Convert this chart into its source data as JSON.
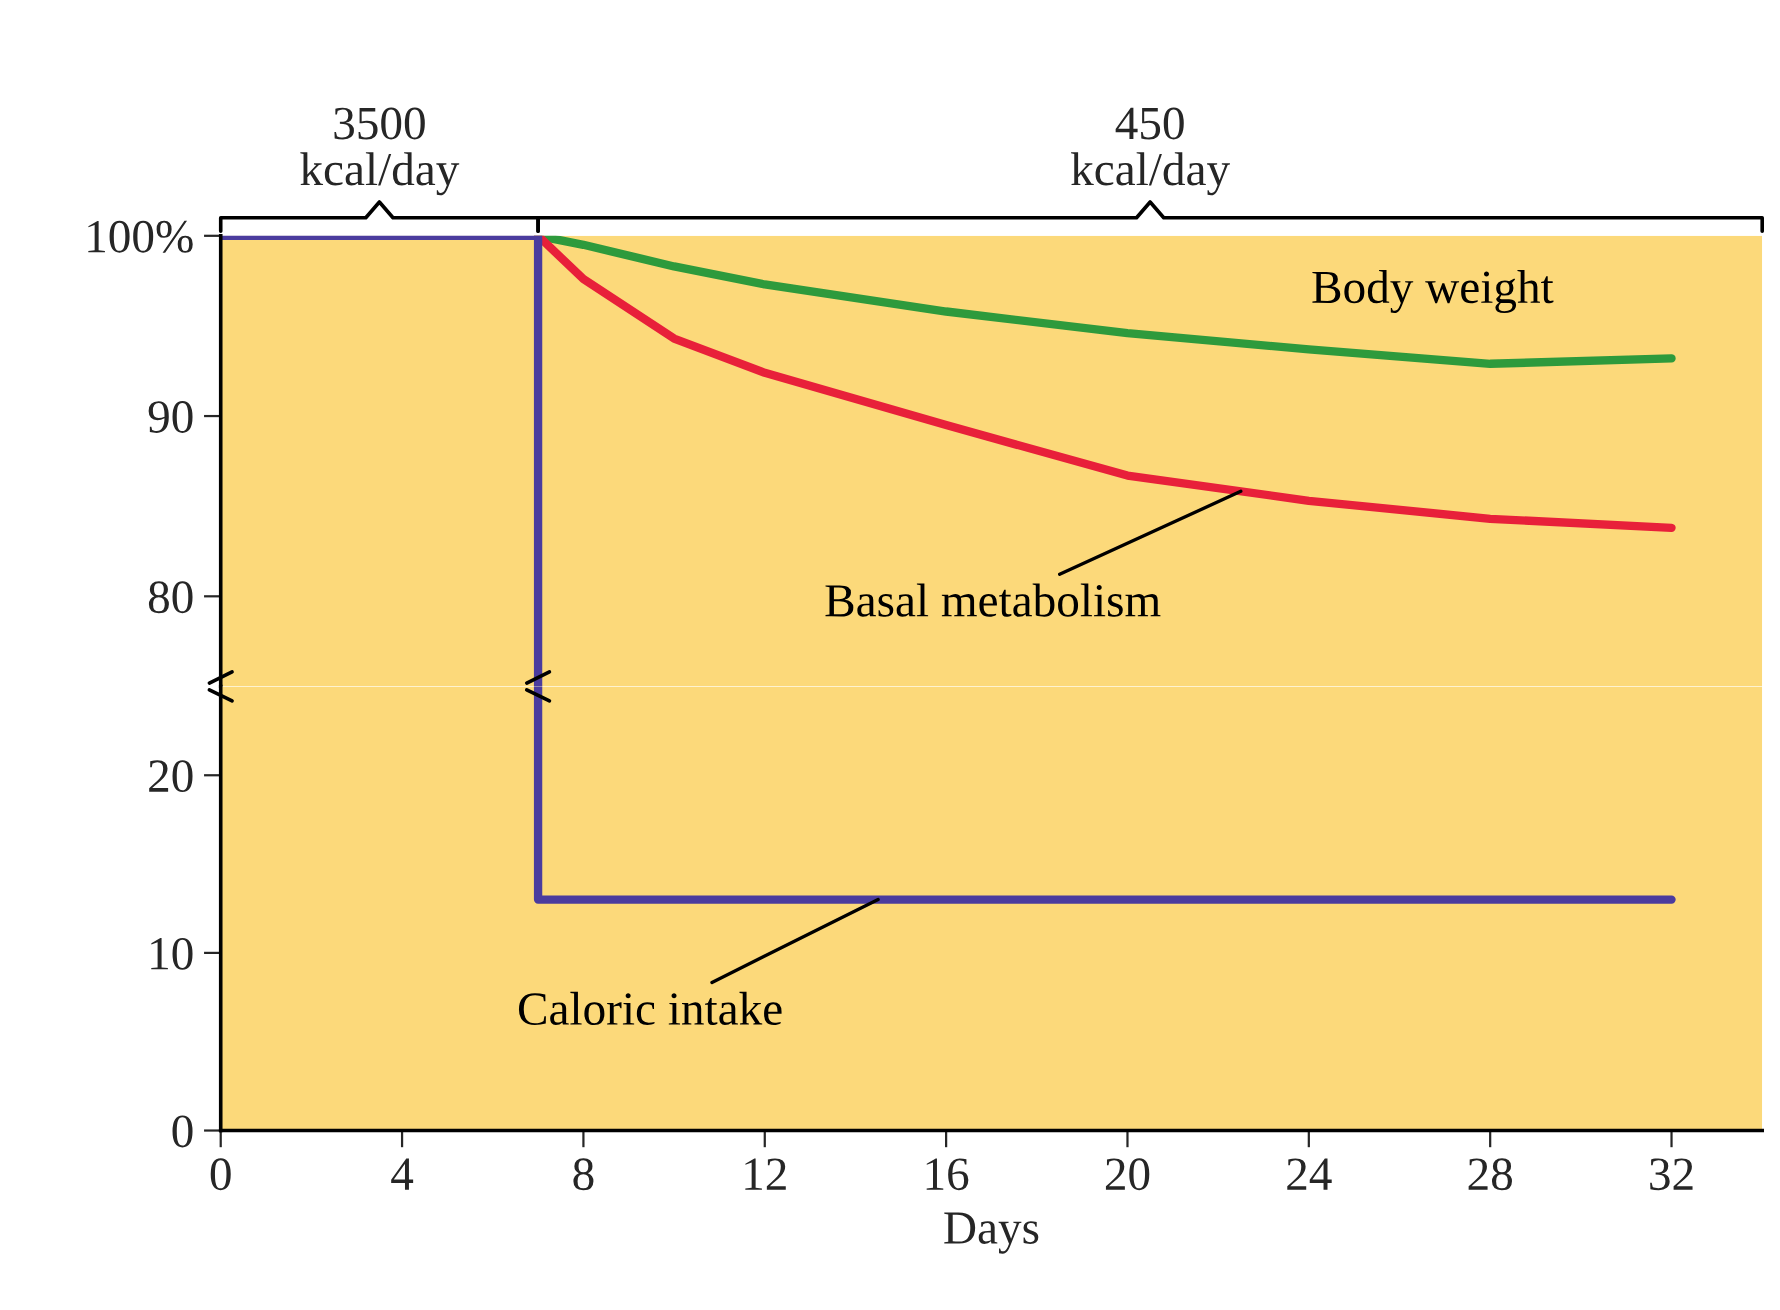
{
  "chart_data": [
    {
      "type": "line",
      "xlim": [
        0,
        34
      ],
      "ylim": [
        75,
        100
      ],
      "yticks": [
        80,
        90,
        {
          "value": 100,
          "label": "100%"
        }
      ],
      "tick_labels": "y",
      "grid": false,
      "legend": false,
      "bands": [
        {
          "axis": "y",
          "from": 75,
          "to": 100,
          "color": "#fcd97a"
        }
      ],
      "annotations": [
        "3500\nkcal/day",
        "450\nkcal/day"
      ],
      "series": [
        {
          "name": "Body weight",
          "color": "#2e9a3c",
          "x": [
            7,
            8,
            10,
            12,
            16,
            20,
            24,
            28,
            32
          ],
          "values": [
            100,
            99.5,
            98.3,
            97.3,
            95.8,
            94.6,
            93.7,
            92.9,
            93.2
          ]
        },
        {
          "name": "Basal metabolism",
          "color": "#e8203a",
          "x": [
            7,
            8,
            10,
            12,
            16,
            20,
            24,
            28,
            32
          ],
          "values": [
            100,
            97.6,
            94.3,
            92.4,
            89.5,
            86.7,
            85.3,
            84.3,
            83.8
          ]
        },
        {
          "color": "#4b3c9e",
          "x": [
            0,
            7,
            7
          ],
          "values": [
            100,
            100,
            75
          ]
        }
      ]
    },
    {
      "type": "line",
      "xlim": [
        0,
        34
      ],
      "ylim": [
        0,
        25
      ],
      "yticks": [
        0,
        10,
        20
      ],
      "xticks": [
        0,
        4,
        8,
        12,
        16,
        20,
        24,
        28,
        32
      ],
      "xlabel": "Days",
      "grid": false,
      "legend": false,
      "bands": [
        {
          "axis": "y",
          "from": 0,
          "to": 25,
          "color": "#fcd97a"
        }
      ],
      "series": [
        {
          "name": "Caloric intake",
          "color": "#4b3c9e",
          "x": [
            7,
            7,
            32
          ],
          "values": [
            25,
            13,
            13
          ]
        }
      ]
    }
  ]
}
